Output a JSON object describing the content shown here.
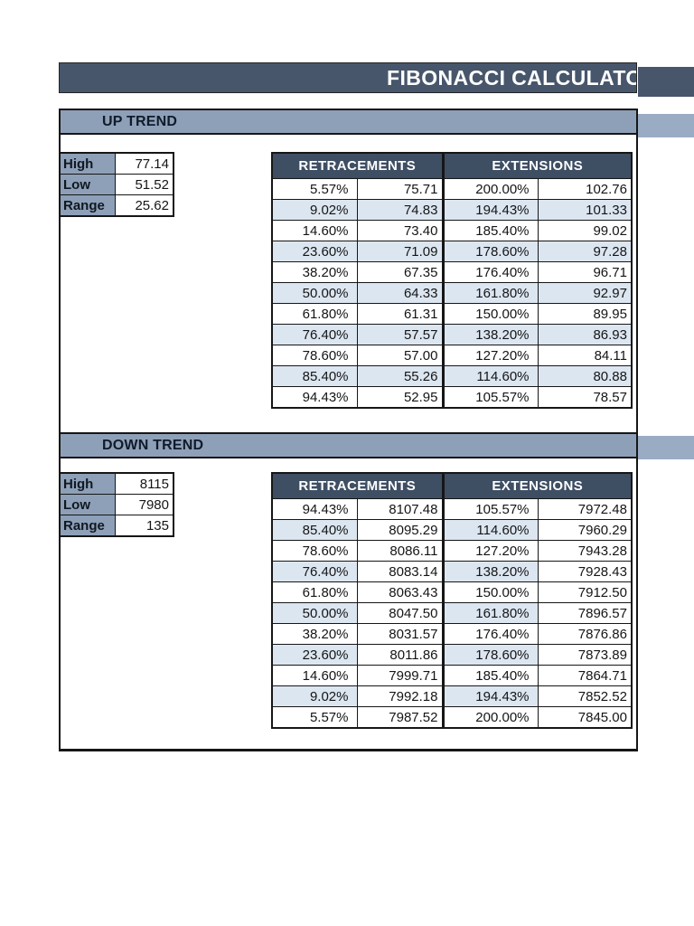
{
  "title_bar": {
    "title": "FIBONACCI CALCULATOR"
  },
  "colors": {
    "title_bg": "#47566B",
    "header_bg": "#3E4E63",
    "bar_bg": "#8EA0B8",
    "band": "#DCE6F1",
    "strip_bg": "#9AACC3"
  },
  "up_trend": {
    "section_label": "UP TREND",
    "summary": {
      "rows": [
        {
          "label": "High",
          "value": "77.14"
        },
        {
          "label": "Low",
          "value": "51.52"
        },
        {
          "label": "Range",
          "value": "25.62"
        }
      ]
    },
    "table": {
      "retracements_header": "RETRACEMENTS",
      "extensions_header": "EXTENSIONS",
      "rows": [
        {
          "pct": "5.57%",
          "value": "75.71",
          "ext_pct": "200.00%",
          "ext_value": "102.76"
        },
        {
          "pct": "9.02%",
          "value": "74.83",
          "ext_pct": "194.43%",
          "ext_value": "101.33"
        },
        {
          "pct": "14.60%",
          "value": "73.40",
          "ext_pct": "185.40%",
          "ext_value": "99.02"
        },
        {
          "pct": "23.60%",
          "value": "71.09",
          "ext_pct": "178.60%",
          "ext_value": "97.28"
        },
        {
          "pct": "38.20%",
          "value": "67.35",
          "ext_pct": "176.40%",
          "ext_value": "96.71"
        },
        {
          "pct": "50.00%",
          "value": "64.33",
          "ext_pct": "161.80%",
          "ext_value": "92.97"
        },
        {
          "pct": "61.80%",
          "value": "61.31",
          "ext_pct": "150.00%",
          "ext_value": "89.95"
        },
        {
          "pct": "76.40%",
          "value": "57.57",
          "ext_pct": "138.20%",
          "ext_value": "86.93"
        },
        {
          "pct": "78.60%",
          "value": "57.00",
          "ext_pct": "127.20%",
          "ext_value": "84.11"
        },
        {
          "pct": "85.40%",
          "value": "55.26",
          "ext_pct": "114.60%",
          "ext_value": "80.88"
        },
        {
          "pct": "94.43%",
          "value": "52.95",
          "ext_pct": "105.57%",
          "ext_value": "78.57"
        }
      ]
    }
  },
  "down_trend": {
    "section_label": "DOWN TREND",
    "summary": {
      "rows": [
        {
          "label": "High",
          "value": "8115"
        },
        {
          "label": "Low",
          "value": "7980"
        },
        {
          "label": "Range",
          "value": "135"
        }
      ]
    },
    "table": {
      "retracements_header": "RETRACEMENTS",
      "extensions_header": "EXTENSIONS",
      "rows": [
        {
          "pct": "94.43%",
          "value": "8107.48",
          "ext_pct": "105.57%",
          "ext_value": "7972.48"
        },
        {
          "pct": "85.40%",
          "value": "8095.29",
          "ext_pct": "114.60%",
          "ext_value": "7960.29"
        },
        {
          "pct": "78.60%",
          "value": "8086.11",
          "ext_pct": "127.20%",
          "ext_value": "7943.28"
        },
        {
          "pct": "76.40%",
          "value": "8083.14",
          "ext_pct": "138.20%",
          "ext_value": "7928.43"
        },
        {
          "pct": "61.80%",
          "value": "8063.43",
          "ext_pct": "150.00%",
          "ext_value": "7912.50"
        },
        {
          "pct": "50.00%",
          "value": "8047.50",
          "ext_pct": "161.80%",
          "ext_value": "7896.57"
        },
        {
          "pct": "38.20%",
          "value": "8031.57",
          "ext_pct": "176.40%",
          "ext_value": "7876.86"
        },
        {
          "pct": "23.60%",
          "value": "8011.86",
          "ext_pct": "178.60%",
          "ext_value": "7873.89"
        },
        {
          "pct": "14.60%",
          "value": "7999.71",
          "ext_pct": "185.40%",
          "ext_value": "7864.71"
        },
        {
          "pct": "9.02%",
          "value": "7992.18",
          "ext_pct": "194.43%",
          "ext_value": "7852.52"
        },
        {
          "pct": "5.57%",
          "value": "7987.52",
          "ext_pct": "200.00%",
          "ext_value": "7845.00"
        }
      ]
    }
  }
}
